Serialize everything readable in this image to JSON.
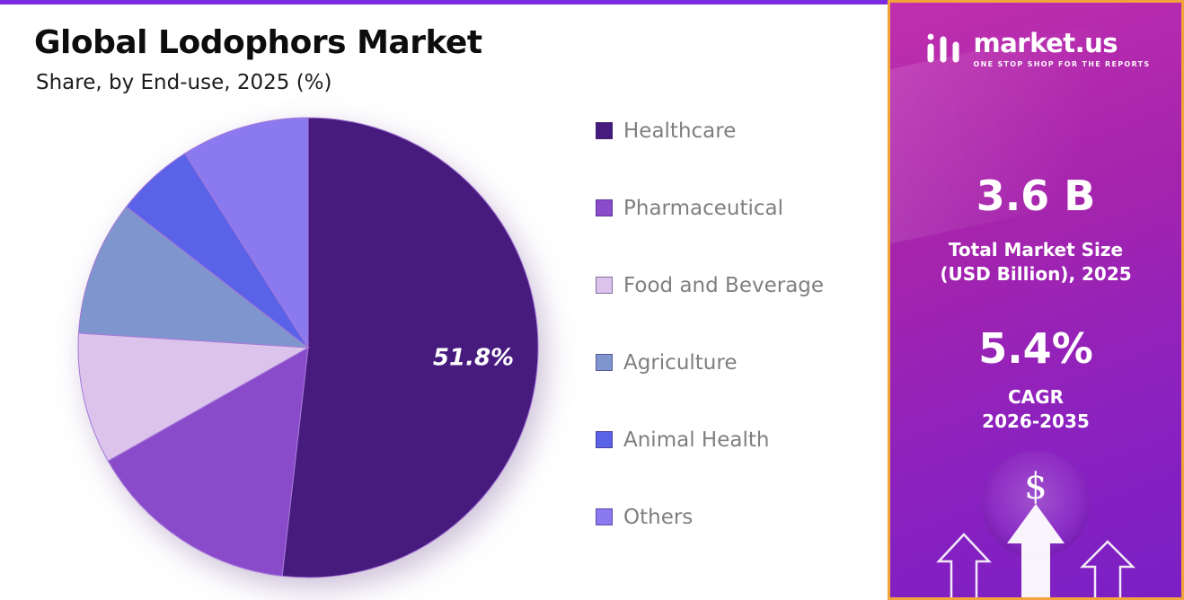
{
  "page": {
    "title": "Global Lodophors Market",
    "subtitle": "Share, by End-use, 2025 (%)"
  },
  "chart_data": {
    "type": "pie",
    "title": "Global Lodophors Market",
    "subtitle": "Share, by End-use, 2025 (%)",
    "unit": "%",
    "labels": [
      "Healthcare",
      "Pharmaceutical",
      "Food and Beverage",
      "Agriculture",
      "Animal Health",
      "Others"
    ],
    "values": [
      51.8,
      15.0,
      9.2,
      9.5,
      5.5,
      9.0
    ],
    "colors": [
      "#471b7e",
      "#8a4bcb",
      "#dcc3ec",
      "#7e96cd",
      "#5a62e8",
      "#8a79ef"
    ],
    "labeled_slice": {
      "label": "Healthcare",
      "text": "51.8%"
    },
    "start_angle": "top",
    "direction": "clockwise",
    "legend_position": "right",
    "note": "only the Healthcare slice (51.8%) carries a printed data label; other values estimated from slice angles"
  },
  "sidebar": {
    "brand": {
      "name": "market.us",
      "tagline": "ONE STOP SHOP FOR THE REPORTS"
    },
    "stats": [
      {
        "value": "3.6 B",
        "line1": "Total Market Size",
        "line2": "(USD Billion), 2025"
      },
      {
        "value": "5.4%",
        "line1": "CAGR",
        "line2": "2026-2035"
      }
    ],
    "dollar_symbol": "$",
    "accent_border_color": "#f2a33c",
    "gradient": [
      "#c02fae",
      "#7a1fc4"
    ],
    "top_strip_color": "#7b2be0"
  }
}
